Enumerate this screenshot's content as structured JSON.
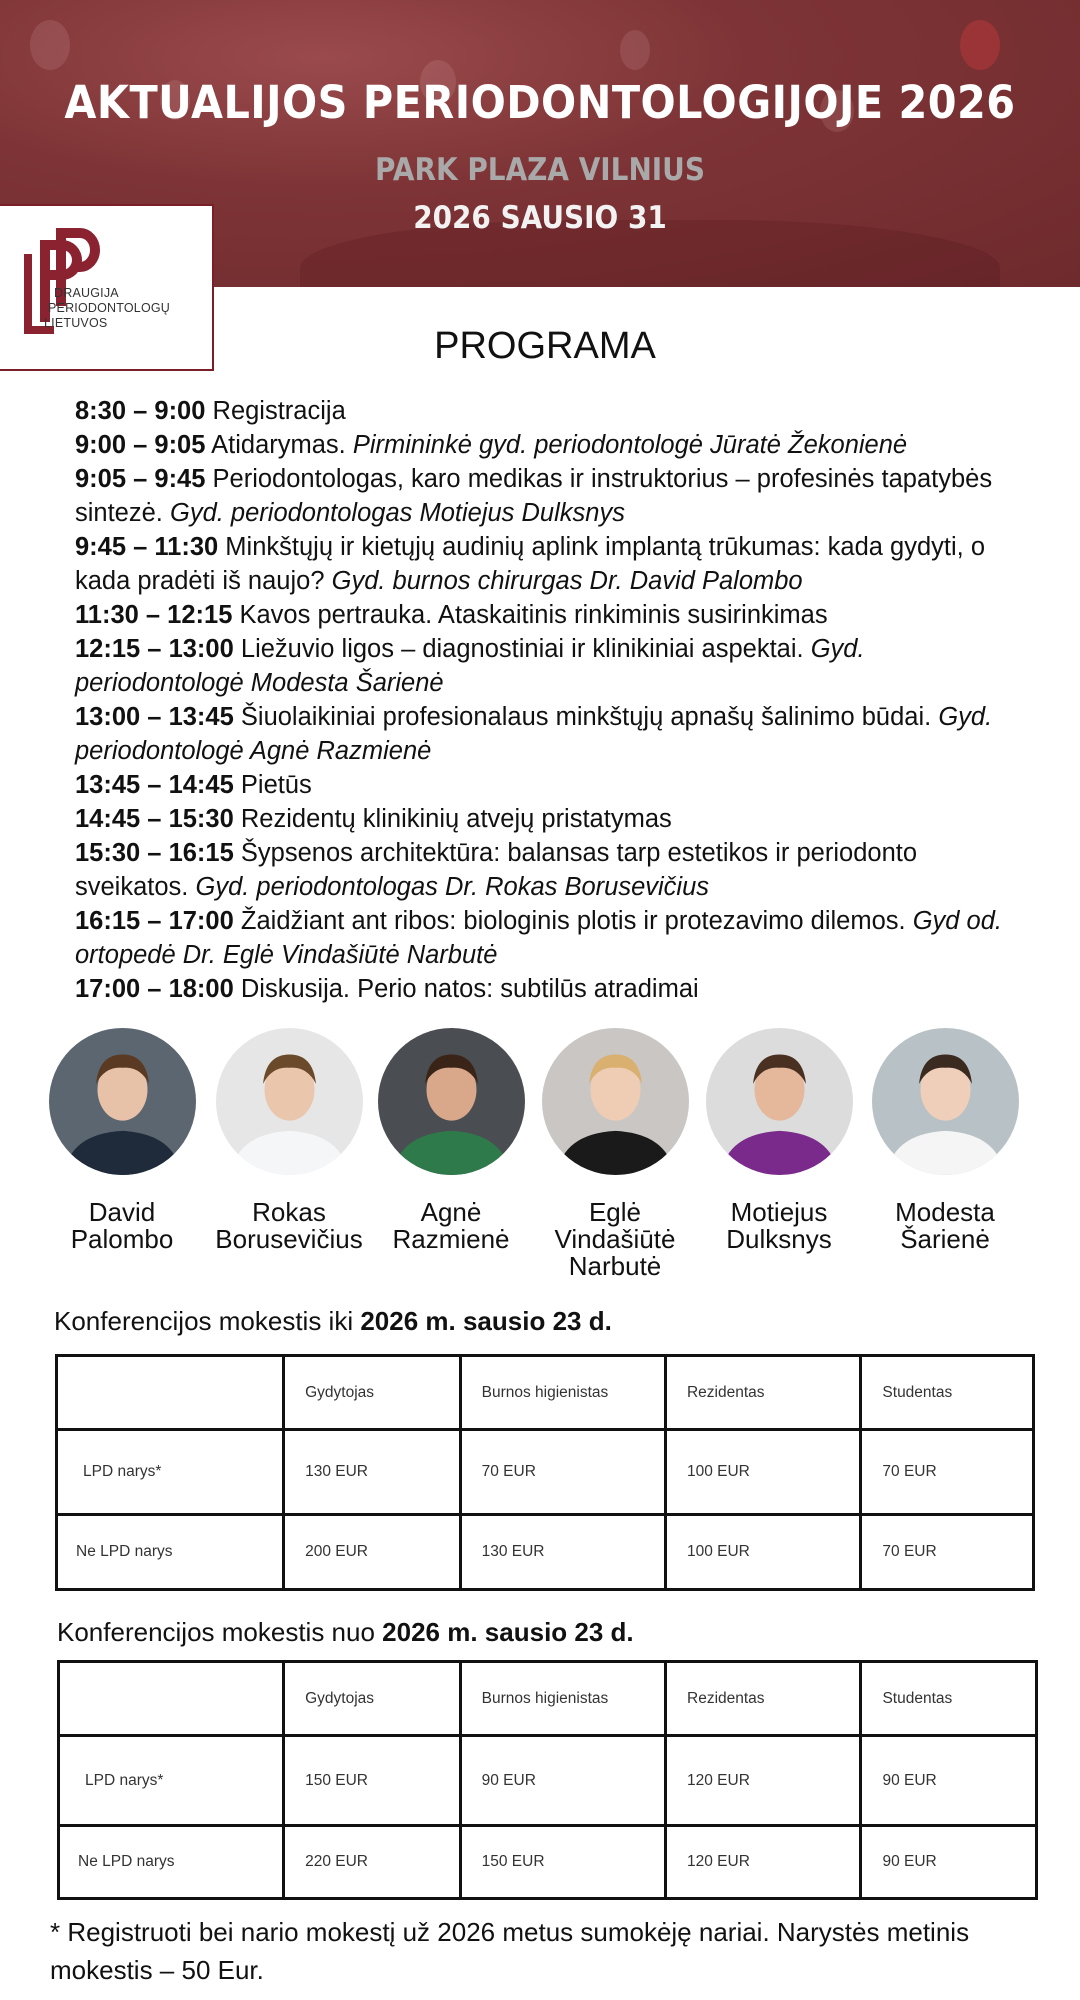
{
  "header": {
    "title": "AKTUALIJOS PERIODONTOLOGIJOJE 2026",
    "venue": "PARK PLAZA VILNIUS",
    "date": "2026 SAUSIO 31",
    "brand_color": "#7a1f28"
  },
  "logo": {
    "lines": [
      "DRAUGIJA",
      "PERIODONTOLOGŲ",
      "LIETUVOS"
    ]
  },
  "program": {
    "heading": "PROGRAMA",
    "items": [
      {
        "time": "8:30 – 9:00",
        "text": "Registracija",
        "speaker": ""
      },
      {
        "time": "9:00 – 9:05",
        "text": "Atidarymas.",
        "speaker": "Pirmininkė gyd. periodontologė Jūratė Žekonienė"
      },
      {
        "time": "9:05 – 9:45",
        "text": "Periodontologas, karo medikas ir instruktorius – profesinės tapatybės sintezė.",
        "speaker": "Gyd. periodontologas Motiejus Dulksnys"
      },
      {
        "time": "9:45 – 11:30",
        "text": "Minkštųjų ir kietųjų audinių aplink implantą trūkumas: kada gydyti, o kada pradėti iš naujo?",
        "speaker": "Gyd. burnos chirurgas Dr. David Palombo"
      },
      {
        "time": "11:30 – 12:15",
        "text": "Kavos pertrauka. Ataskaitinis rinkiminis susirinkimas",
        "speaker": ""
      },
      {
        "time": "12:15 – 13:00",
        "text": "Liežuvio ligos – diagnostiniai ir klinikiniai aspektai.",
        "speaker": "Gyd. periodontologė Modesta Šarienė"
      },
      {
        "time": "13:00 – 13:45",
        "text": "Šiuolaikiniai profesionalaus minkštųjų apnašų šalinimo būdai.",
        "speaker": "Gyd. periodontologė Agnė Razmienė"
      },
      {
        "time": "13:45 – 14:45",
        "text": "Pietūs",
        "speaker": ""
      },
      {
        "time": "14:45 – 15:30",
        "text": "Rezidentų klinikinių atvejų pristatymas",
        "speaker": ""
      },
      {
        "time": "15:30 – 16:15",
        "text": "Šypsenos architektūra: balansas tarp estetikos ir periodonto sveikatos.",
        "speaker": "Gyd. periodontologas Dr. Rokas Borusevičius"
      },
      {
        "time": "16:15 – 17:00",
        "text": "Žaidžiant ant ribos: biologinis plotis ir protezavimo dilemos.",
        "speaker": "Gyd od. ortopedė Dr. Eglė Vindašiūtė Narbutė"
      },
      {
        "time": "17:00 – 18:00",
        "text": "Diskusija. Perio natos: subtilūs atradimai",
        "speaker": ""
      }
    ]
  },
  "speakers": [
    {
      "first": "David",
      "last": "Palombo",
      "third": ""
    },
    {
      "first": "Rokas",
      "last": "Borusevičius",
      "third": ""
    },
    {
      "first": "Agnė",
      "last": "Razmienė",
      "third": ""
    },
    {
      "first": "Eglė",
      "last": "Vindašiūtė",
      "third": "Narbutė"
    },
    {
      "first": "Motiejus",
      "last": "Dulksnys",
      "third": ""
    },
    {
      "first": "Modesta",
      "last": "Šarienė",
      "third": ""
    }
  ],
  "fees": [
    {
      "title_prefix": "Konferencijos mokestis iki ",
      "title_bold": "2026 m. sausio 23 d.",
      "headers": [
        "",
        "Gydytojas",
        "Burnos higienistas",
        "Rezidentas",
        "Studentas"
      ],
      "rows": [
        [
          "LPD narys*",
          "130 EUR",
          "70 EUR",
          "100 EUR",
          "70 EUR"
        ],
        [
          "Ne LPD narys",
          "200 EUR",
          "130 EUR",
          "100 EUR",
          "70 EUR"
        ]
      ]
    },
    {
      "title_prefix": "Konferencijos mokestis nuo ",
      "title_bold": "2026 m. sausio 23 d.",
      "headers": [
        "",
        "Gydytojas",
        "Burnos higienistas",
        "Rezidentas",
        "Studentas"
      ],
      "rows": [
        [
          "LPD narys*",
          "150 EUR",
          "90 EUR",
          "120 EUR",
          "90 EUR"
        ],
        [
          "Ne LPD narys",
          "220 EUR",
          "150 EUR",
          "120 EUR",
          "90 EUR"
        ]
      ]
    }
  ],
  "footnote": "* Registruoti bei nario mokestį už 2026 metus sumokėję nariai. Narystės metinis mokestis – 50 Eur."
}
